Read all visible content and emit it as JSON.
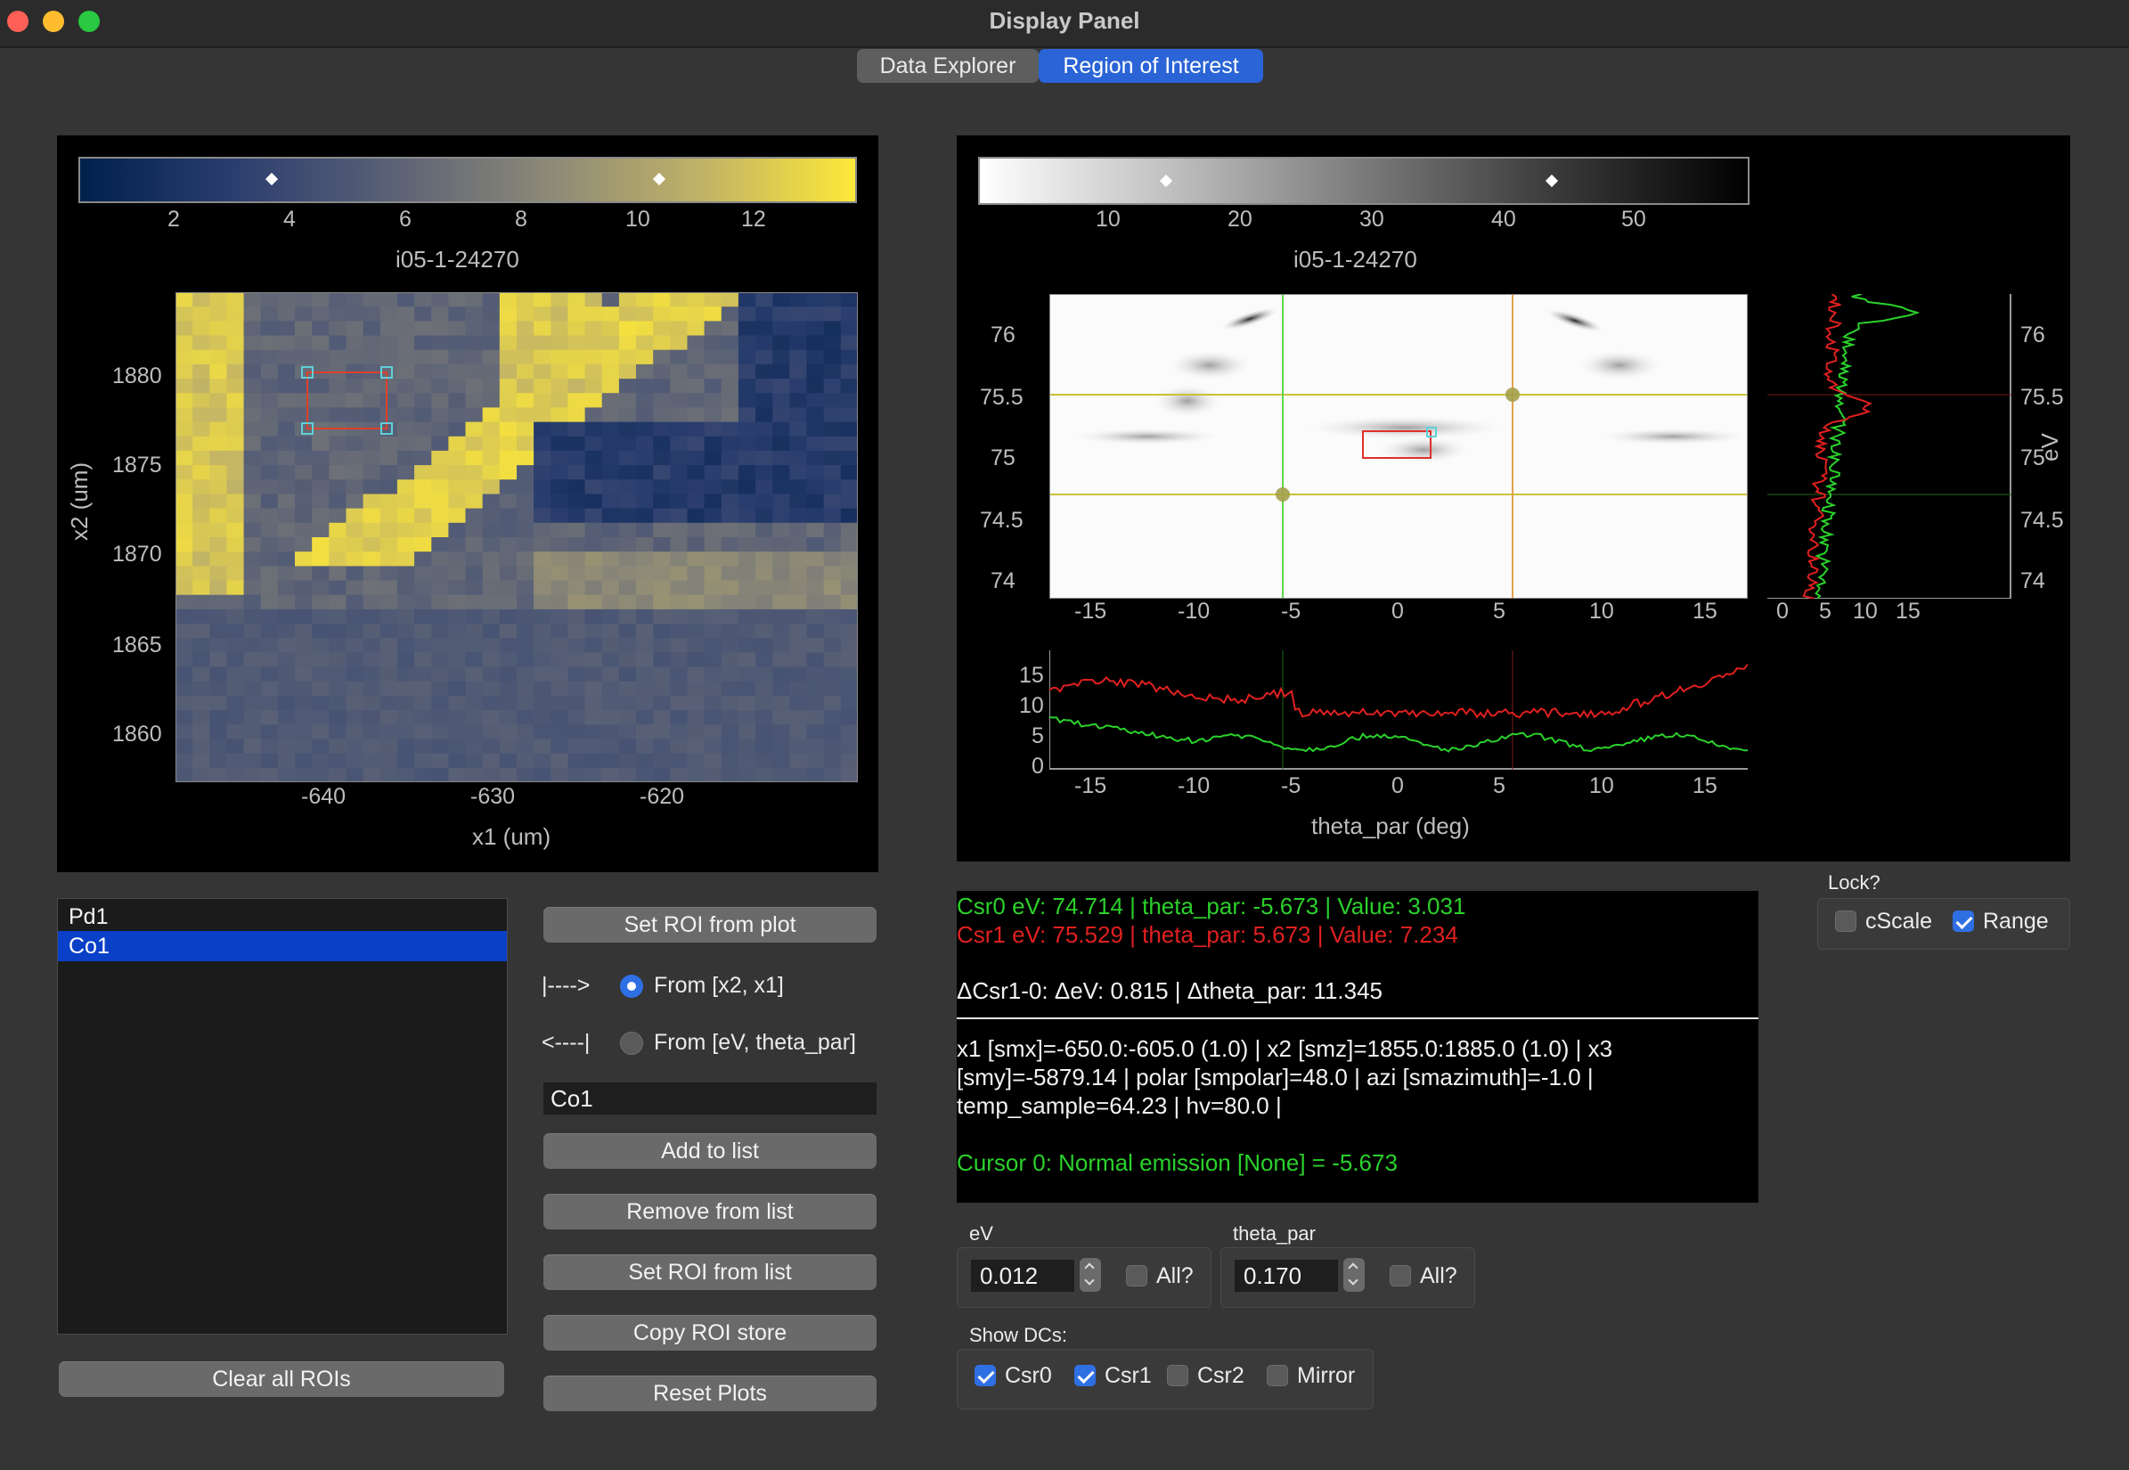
{
  "window": {
    "title": "Display Panel"
  },
  "tabs": [
    {
      "label": "Data Explorer",
      "active": false
    },
    {
      "label": "Region of Interest",
      "active": true
    }
  ],
  "left_plot": {
    "colorbar": {
      "label": "i05-1-24270",
      "ticks": [
        "2",
        "4",
        "6",
        "8",
        "10",
        "12"
      ],
      "colormap": "navy-to-yellow"
    },
    "x_ticks": [
      "-640",
      "-630",
      "-620"
    ],
    "y_ticks": [
      "1880",
      "1875",
      "1870",
      "1865",
      "1860"
    ],
    "xlabel": "x1 (um)",
    "ylabel": "x2 (um)"
  },
  "right_plot": {
    "colorbar": {
      "label": "i05-1-24270",
      "ticks": [
        "10",
        "20",
        "30",
        "40",
        "50"
      ],
      "colormap": "white-to-black"
    },
    "main_y_ticks": [
      "76",
      "75.5",
      "75",
      "74.5",
      "74"
    ],
    "main_x_ticks": [
      "-15",
      "-10",
      "-5",
      "0",
      "5",
      "10",
      "15"
    ],
    "edc_y_ticks": [
      "76",
      "75.5",
      "75",
      "74.5",
      "74"
    ],
    "edc_x_ticks": [
      "0",
      "5",
      "10",
      "15"
    ],
    "edc_ylabel": "eV",
    "mdc_y_ticks": [
      "15",
      "10",
      "5",
      "0"
    ],
    "mdc_x_ticks": [
      "-15",
      "-10",
      "-5",
      "0",
      "5",
      "10",
      "15"
    ],
    "mdc_xlabel": "theta_par (deg)",
    "colors": {
      "csr0": "#2bd12b",
      "csr1": "#e02020"
    }
  },
  "roi_list": {
    "items": [
      {
        "label": "Pd1",
        "selected": false
      },
      {
        "label": "Co1",
        "selected": true
      }
    ]
  },
  "buttons": {
    "set_roi_from_plot": "Set ROI from plot",
    "add_to_list": "Add to list",
    "remove_from_list": "Remove from list",
    "set_roi_from_list": "Set ROI from list",
    "copy_roi_store": "Copy ROI store",
    "reset_plots": "Reset Plots",
    "clear_all_rois": "Clear all ROIs"
  },
  "direction": {
    "from_x_arrow": "|---->",
    "from_x_label": "From [x2, x1]",
    "from_ev_arrow": "<----|",
    "from_ev_label": "From [eV, theta_par]"
  },
  "roi_name_input": "Co1",
  "info": {
    "csr0": "Csr0 eV: 74.714 | theta_par: -5.673 | Value: 3.031",
    "csr1": "Csr1 eV: 75.529 | theta_par: 5.673 | Value: 7.234",
    "delta": "ΔCsr1-0: ΔeV: 0.815 | Δtheta_par: 11.345",
    "meta_line1": "x1 [smx]=-650.0:-605.0 (1.0) | x2 [smz]=1855.0:1885.0 (1.0) | x3",
    "meta_line2": "[smy]=-5879.14 | polar [smpolar]=48.0 | azi [smazimuth]=-1.0 |",
    "meta_line3": "temp_sample=64.23 | hv=80.0 |",
    "cursor0": "Cursor 0: Normal emission [None] = -5.673"
  },
  "lock": {
    "title": "Lock?",
    "cscale_label": "cScale",
    "cscale_checked": false,
    "range_label": "Range",
    "range_checked": true
  },
  "ev_box": {
    "title": "eV",
    "value": "0.012",
    "all_label": "All?"
  },
  "theta_box": {
    "title": "theta_par",
    "value": "0.170",
    "all_label": "All?"
  },
  "show_dcs": {
    "title": "Show DCs:",
    "csr0": "Csr0",
    "csr0_checked": true,
    "csr1": "Csr1",
    "csr1_checked": true,
    "csr2": "Csr2",
    "csr2_checked": false,
    "mirror": "Mirror",
    "mirror_checked": false
  }
}
